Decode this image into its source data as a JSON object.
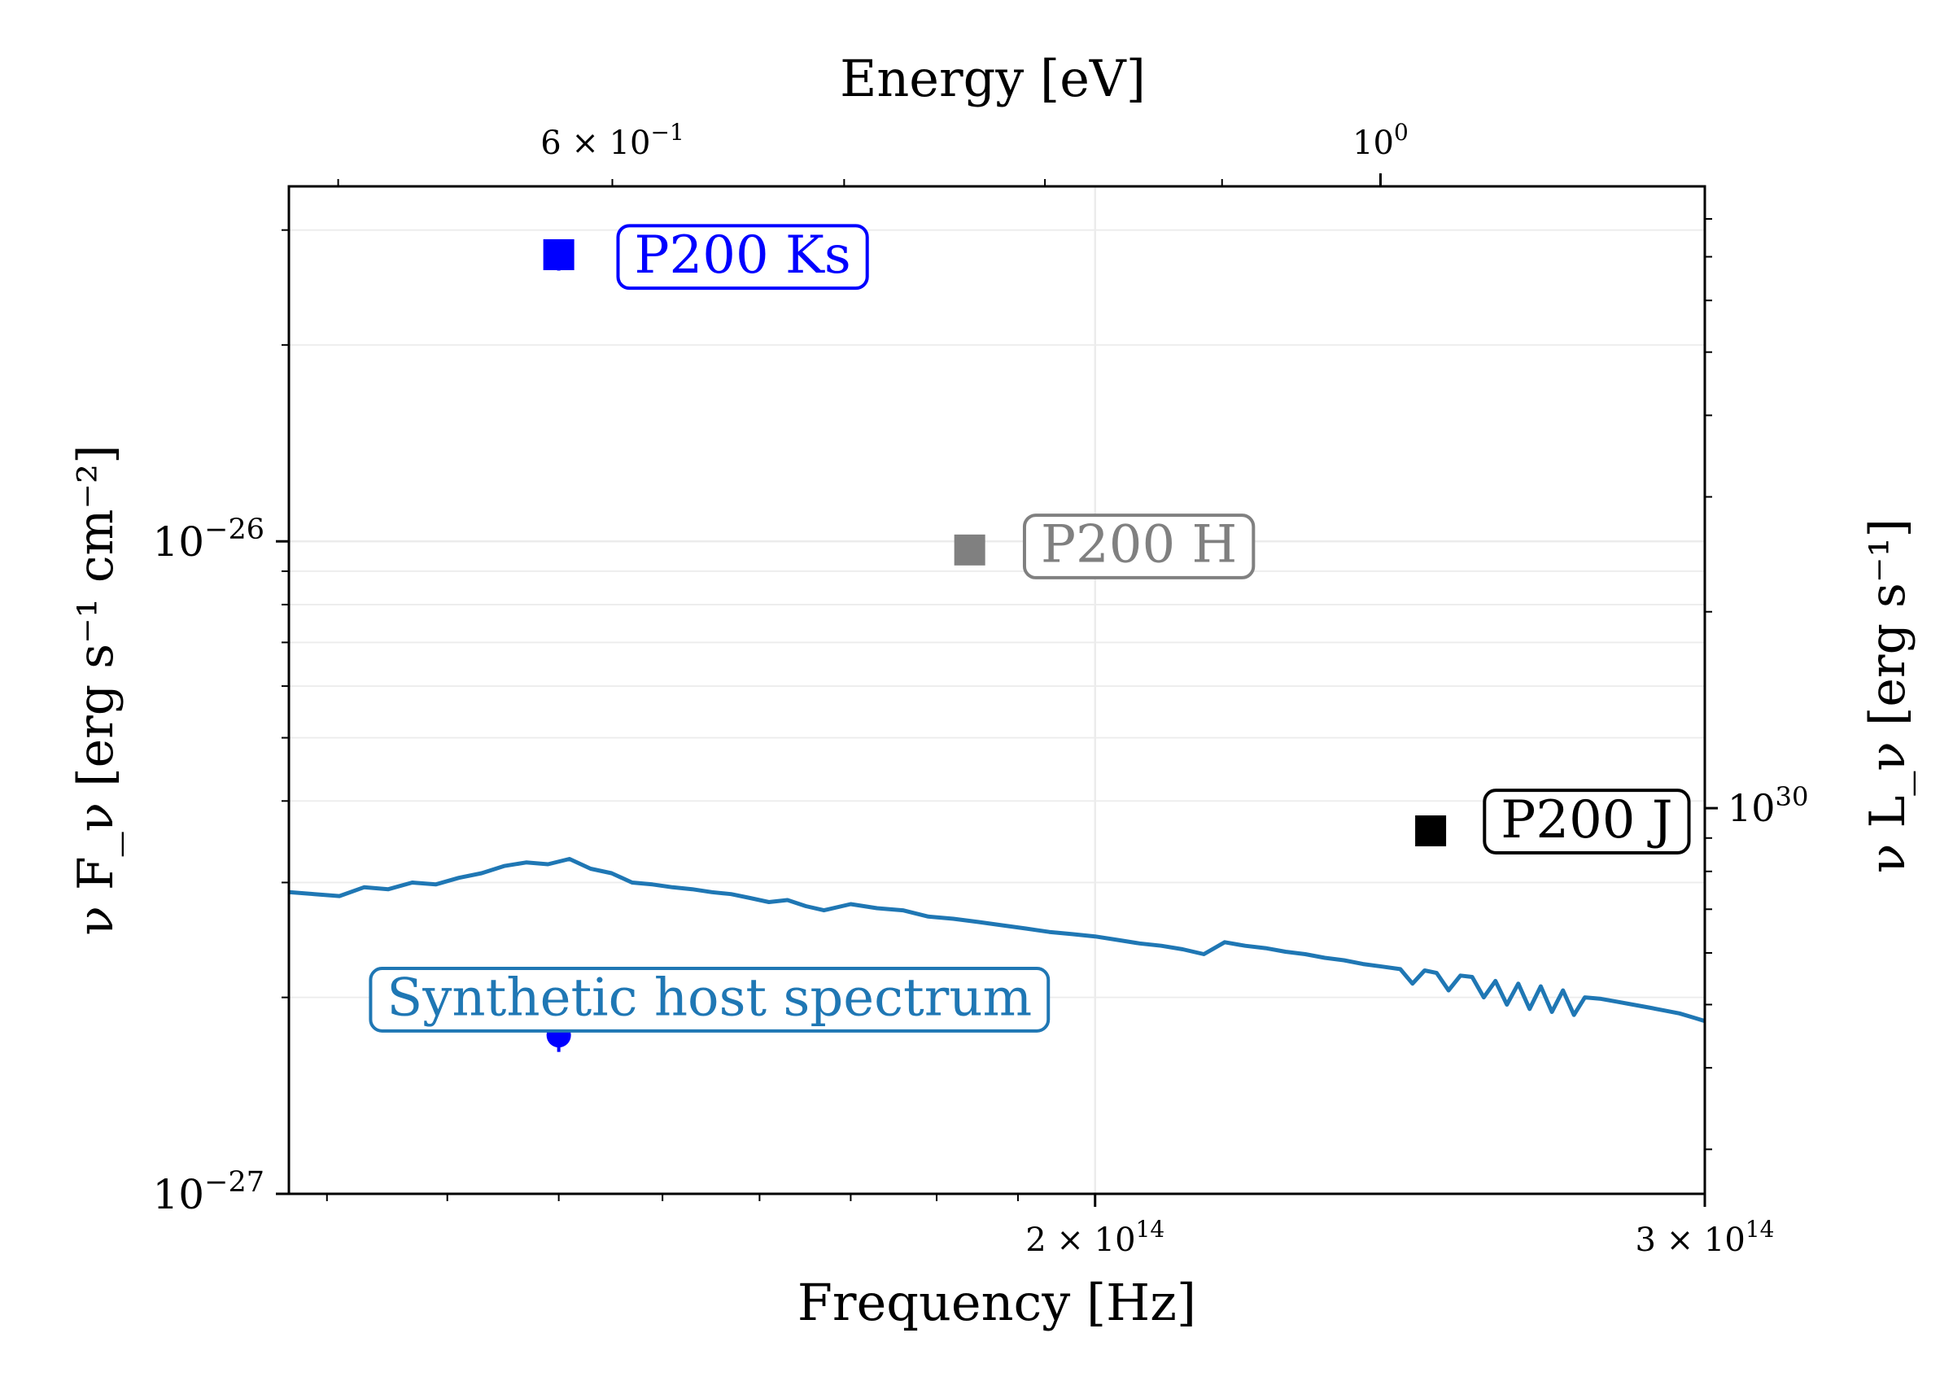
{
  "chart_data": {
    "type": "scatter",
    "title": "",
    "xlabel": "Frequency [Hz]",
    "ylabel": "ν F_ν [erg s⁻¹ cm⁻²]",
    "top_xlabel": "Energy [eV]",
    "right_ylabel": "ν L_ν [erg s⁻¹]",
    "x_scale": "log",
    "y_scale": "log",
    "xlim": [
      117000000000000.0,
      300000000000000.0
    ],
    "ylim": [
      1e-27,
      3.5e-26
    ],
    "grid": true,
    "x_ticks": [
      {
        "value": 200000000000000.0,
        "base": "2 × 10",
        "exp": "14"
      },
      {
        "value": 300000000000000.0,
        "base": "3 × 10",
        "exp": "14"
      }
    ],
    "y_ticks": [
      {
        "value": 1e-27,
        "base": "10",
        "exp": "−27"
      },
      {
        "value": 1e-26,
        "base": "10",
        "exp": "−26"
      }
    ],
    "top_ticks": [
      {
        "value": 0.6,
        "base": "6 × 10",
        "exp": "−1"
      },
      {
        "value": 1.0,
        "base": "10",
        "exp": "0"
      }
    ],
    "right_ticks": [
      {
        "value": 1e+30,
        "base": "10",
        "exp": "30"
      }
    ],
    "right_axis_scale": {
      "flux_at_1e30": 3.9e-27
    },
    "series": [
      {
        "name": "P200 Ks",
        "color": "#0000ff",
        "marker": "square",
        "x": 140000000000000.0,
        "y": 2.75e-26,
        "yerr": 1.5e-27
      },
      {
        "name": "P200 H",
        "color": "#808080",
        "marker": "square",
        "x": 184000000000000.0,
        "y": 9.7e-27,
        "yerr": 0
      },
      {
        "name": "P200 J",
        "color": "#000000",
        "marker": "square",
        "x": 250000000000000.0,
        "y": 3.6e-27,
        "yerr": 0
      },
      {
        "name": "",
        "color": "#0000ff",
        "marker": "circle",
        "x": 140000000000000.0,
        "y": 1.75e-27,
        "yerr": 1e-28
      }
    ],
    "spectrum": {
      "name": "Synthetic host spectrum",
      "color": "#1f77b4",
      "x": [
        117000000000000.0,
        119000000000000.0,
        121000000000000.0,
        123000000000000.0,
        125000000000000.0,
        127000000000000.0,
        129000000000000.0,
        131000000000000.0,
        133000000000000.0,
        135000000000000.0,
        137000000000000.0,
        139000000000000.0,
        141000000000000.0,
        143000000000000.0,
        145000000000000.0,
        147000000000000.0,
        149000000000000.0,
        151000000000000.0,
        153000000000000.0,
        155000000000000.0,
        157000000000000.0,
        159000000000000.0,
        161000000000000.0,
        163000000000000.0,
        165000000000000.0,
        167000000000000.0,
        170000000000000.0,
        173000000000000.0,
        176000000000000.0,
        179000000000000.0,
        182000000000000.0,
        185000000000000.0,
        188000000000000.0,
        191000000000000.0,
        194000000000000.0,
        197000000000000.0,
        200000000000000.0,
        203000000000000.0,
        206000000000000.0,
        209000000000000.0,
        212000000000000.0,
        215000000000000.0,
        218000000000000.0,
        221000000000000.0,
        224000000000000.0,
        227000000000000.0,
        230000000000000.0,
        233000000000000.0,
        236000000000000.0,
        239000000000000.0,
        242000000000000.0,
        245000000000000.0,
        247000000000000.0,
        249000000000000.0,
        251000000000000.0,
        253000000000000.0,
        255000000000000.0,
        257000000000000.0,
        259000000000000.0,
        261000000000000.0,
        263000000000000.0,
        265000000000000.0,
        267000000000000.0,
        269000000000000.0,
        271000000000000.0,
        273000000000000.0,
        275000000000000.0,
        277000000000000.0,
        280000000000000.0,
        283000000000000.0,
        286000000000000.0,
        289000000000000.0,
        292000000000000.0,
        295000000000000.0,
        298000000000000.0,
        300000000000000.0
      ],
      "y": [
        2.9e-27,
        2.88e-27,
        2.86e-27,
        2.95e-27,
        2.93e-27,
        3e-27,
        2.98e-27,
        3.05e-27,
        3.1e-27,
        3.18e-27,
        3.22e-27,
        3.2e-27,
        3.26e-27,
        3.15e-27,
        3.1e-27,
        3e-27,
        2.98e-27,
        2.95e-27,
        2.93e-27,
        2.9e-27,
        2.88e-27,
        2.84e-27,
        2.8e-27,
        2.82e-27,
        2.76e-27,
        2.72e-27,
        2.78e-27,
        2.74e-27,
        2.72e-27,
        2.66e-27,
        2.64e-27,
        2.61e-27,
        2.58e-27,
        2.55e-27,
        2.52e-27,
        2.5e-27,
        2.48e-27,
        2.45e-27,
        2.42e-27,
        2.4e-27,
        2.37e-27,
        2.33e-27,
        2.43e-27,
        2.4e-27,
        2.38e-27,
        2.35e-27,
        2.33e-27,
        2.3e-27,
        2.28e-27,
        2.25e-27,
        2.23e-27,
        2.21e-27,
        2.1e-27,
        2.2e-27,
        2.18e-27,
        2.05e-27,
        2.16e-27,
        2.15e-27,
        2e-27,
        2.12e-27,
        1.95e-27,
        2.1e-27,
        1.92e-27,
        2.08e-27,
        1.9e-27,
        2.05e-27,
        1.88e-27,
        2e-27,
        1.99e-27,
        1.97e-27,
        1.95e-27,
        1.93e-27,
        1.91e-27,
        1.89e-27,
        1.86e-27,
        1.84e-27
      ]
    },
    "annotations": [
      {
        "text": "P200 Ks",
        "color": "#0000ff",
        "anchor_x": 145000000000000.0,
        "anchor_y": 2.75e-26
      },
      {
        "text": "P200 H",
        "color": "#808080",
        "anchor_x": 190000000000000.0,
        "anchor_y": 9.9e-27
      },
      {
        "text": "P200 J",
        "color": "#000000",
        "anchor_x": 258000000000000.0,
        "anchor_y": 3.75e-27
      },
      {
        "text": "Synthetic host spectrum",
        "color": "#1f77b4",
        "anchor_x": 123000000000000.0,
        "anchor_y": 2e-27
      }
    ]
  }
}
